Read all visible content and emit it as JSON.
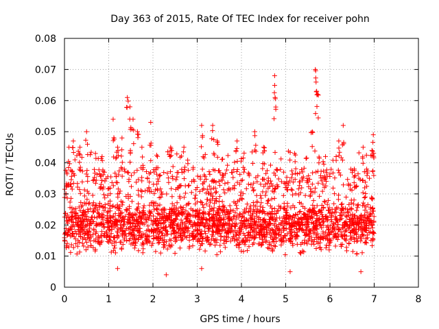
{
  "chart_data": {
    "type": "scatter",
    "title": "Day 363 of 2015, Rate Of TEC Index for receiver pohn",
    "xlabel": "GPS time / hours",
    "ylabel": "ROTI / TECUs",
    "xlim": [
      0,
      8
    ],
    "ylim": [
      0,
      0.08
    ],
    "grid": true,
    "marker": "+",
    "color": "#ff0000",
    "x_ticks": [
      "0",
      "1",
      "2",
      "3",
      "4",
      "5",
      "6",
      "7",
      "8"
    ],
    "y_ticks": [
      "0",
      "0.01",
      "0.02",
      "0.03",
      "0.04",
      "0.05",
      "0.06",
      "0.07",
      "0.08"
    ],
    "series": [
      {
        "name": "ROTI",
        "x_range": [
          0,
          7
        ],
        "bulk_range": [
          0.005,
          0.03
        ],
        "peaks": [
          [
            0.05,
            0.037
          ],
          [
            0.1,
            0.045
          ],
          [
            0.2,
            0.047
          ],
          [
            0.35,
            0.045
          ],
          [
            0.5,
            0.05
          ],
          [
            0.7,
            0.043
          ],
          [
            0.85,
            0.042
          ],
          [
            1.1,
            0.054
          ],
          [
            1.2,
            0.045
          ],
          [
            1.3,
            0.048
          ],
          [
            1.42,
            0.061
          ],
          [
            1.48,
            0.058
          ],
          [
            1.55,
            0.054
          ],
          [
            1.65,
            0.05
          ],
          [
            1.75,
            0.045
          ],
          [
            1.95,
            0.053
          ],
          [
            2.1,
            0.042
          ],
          [
            2.4,
            0.045
          ],
          [
            2.7,
            0.045
          ],
          [
            3.1,
            0.052
          ],
          [
            3.35,
            0.052
          ],
          [
            3.45,
            0.047
          ],
          [
            3.9,
            0.047
          ],
          [
            4.3,
            0.05
          ],
          [
            4.5,
            0.045
          ],
          [
            4.75,
            0.068
          ],
          [
            4.76,
            0.061
          ],
          [
            5.2,
            0.043
          ],
          [
            5.6,
            0.05
          ],
          [
            5.67,
            0.07
          ],
          [
            5.7,
            0.063
          ],
          [
            5.72,
            0.062
          ],
          [
            5.9,
            0.042
          ],
          [
            6.2,
            0.047
          ],
          [
            6.3,
            0.052
          ],
          [
            6.55,
            0.038
          ],
          [
            6.75,
            0.045
          ],
          [
            6.95,
            0.044
          ],
          [
            6.98,
            0.049
          ]
        ]
      }
    ]
  }
}
